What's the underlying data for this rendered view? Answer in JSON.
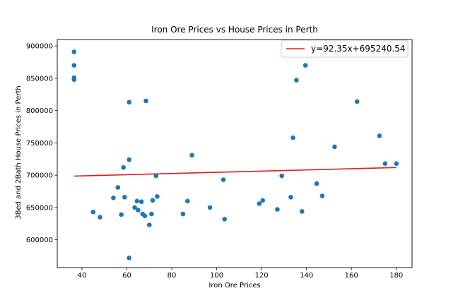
{
  "chart_data": {
    "type": "scatter",
    "title": "Iron Ore Prices vs House Prices in Perth",
    "xlabel": "Iron Ore Prices",
    "ylabel": "3Bed and 2Bath House Prices in Perth",
    "xlim": [
      29,
      187
    ],
    "ylim": [
      557000,
      910000
    ],
    "xticks": [
      40,
      60,
      80,
      100,
      120,
      140,
      160,
      180
    ],
    "yticks": [
      600000,
      650000,
      700000,
      750000,
      800000,
      850000,
      900000
    ],
    "grid": false,
    "legend_position": "top-right",
    "colors": {
      "points": "#1f77b4",
      "fit_line": "#e31a1c"
    },
    "fit": {
      "name": "y=92.35x+695240.54",
      "slope": 92.35,
      "intercept": 695240.54,
      "x_range": [
        36.5,
        180
      ]
    },
    "points": [
      {
        "x": 36.5,
        "y": 891000
      },
      {
        "x": 36.5,
        "y": 870000
      },
      {
        "x": 36.5,
        "y": 851000
      },
      {
        "x": 36.5,
        "y": 848000
      },
      {
        "x": 45,
        "y": 643000
      },
      {
        "x": 48,
        "y": 635000
      },
      {
        "x": 54,
        "y": 665000
      },
      {
        "x": 56,
        "y": 681000
      },
      {
        "x": 57.5,
        "y": 639000
      },
      {
        "x": 58.5,
        "y": 712000
      },
      {
        "x": 59,
        "y": 666000
      },
      {
        "x": 61,
        "y": 813000
      },
      {
        "x": 61,
        "y": 724000
      },
      {
        "x": 61,
        "y": 572000
      },
      {
        "x": 63.5,
        "y": 650000
      },
      {
        "x": 64.5,
        "y": 660000
      },
      {
        "x": 65,
        "y": 646000
      },
      {
        "x": 66.5,
        "y": 659000
      },
      {
        "x": 67,
        "y": 640000
      },
      {
        "x": 68,
        "y": 637000
      },
      {
        "x": 68.5,
        "y": 815000
      },
      {
        "x": 70,
        "y": 623000
      },
      {
        "x": 71,
        "y": 640000
      },
      {
        "x": 71.5,
        "y": 661000
      },
      {
        "x": 73,
        "y": 699000
      },
      {
        "x": 73.5,
        "y": 667000
      },
      {
        "x": 85,
        "y": 640000
      },
      {
        "x": 87,
        "y": 660000
      },
      {
        "x": 89,
        "y": 731000
      },
      {
        "x": 97,
        "y": 650000
      },
      {
        "x": 103,
        "y": 693000
      },
      {
        "x": 103.5,
        "y": 632000
      },
      {
        "x": 119,
        "y": 656000
      },
      {
        "x": 120.5,
        "y": 661000
      },
      {
        "x": 127,
        "y": 647000
      },
      {
        "x": 129,
        "y": 699000
      },
      {
        "x": 133,
        "y": 666000
      },
      {
        "x": 134,
        "y": 758000
      },
      {
        "x": 135.5,
        "y": 847000
      },
      {
        "x": 138,
        "y": 644000
      },
      {
        "x": 139.5,
        "y": 870000
      },
      {
        "x": 144.5,
        "y": 687000
      },
      {
        "x": 147,
        "y": 668000
      },
      {
        "x": 152.5,
        "y": 744000
      },
      {
        "x": 162.5,
        "y": 814000
      },
      {
        "x": 172.5,
        "y": 761000
      },
      {
        "x": 175,
        "y": 718000
      },
      {
        "x": 180,
        "y": 718000
      }
    ]
  }
}
